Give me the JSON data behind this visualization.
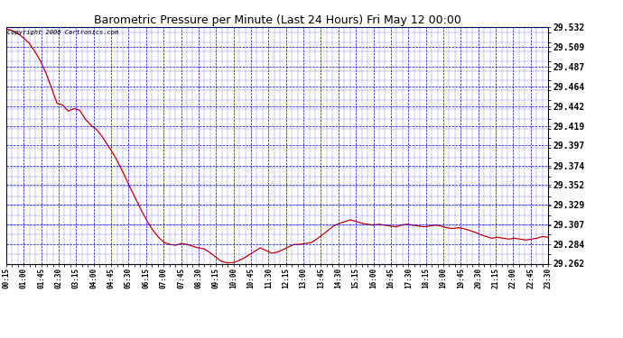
{
  "title": "Barometric Pressure per Minute (Last 24 Hours) Fri May 12 00:00",
  "copyright": "Copyright 2006 Cartronics.com",
  "line_color": "#cc0000",
  "bg_color": "#ffffff",
  "plot_bg_color": "#ffffff",
  "grid_color": "#0000cc",
  "y_min": 29.262,
  "y_max": 29.532,
  "y_ticks": [
    29.262,
    29.284,
    29.307,
    29.329,
    29.352,
    29.374,
    29.397,
    29.419,
    29.442,
    29.464,
    29.487,
    29.509,
    29.532
  ],
  "x_labels": [
    "00:15",
    "01:00",
    "01:45",
    "02:30",
    "03:15",
    "04:00",
    "04:45",
    "05:30",
    "06:15",
    "07:00",
    "07:45",
    "08:30",
    "09:15",
    "10:00",
    "10:45",
    "11:30",
    "12:15",
    "13:00",
    "13:45",
    "14:30",
    "15:15",
    "16:00",
    "16:45",
    "17:30",
    "18:15",
    "19:00",
    "19:45",
    "20:30",
    "21:15",
    "22:00",
    "22:45",
    "23:30"
  ],
  "pressure_values": [
    29.53,
    29.528,
    29.525,
    29.52,
    29.514,
    29.505,
    29.494,
    29.48,
    29.463,
    29.445,
    29.443,
    29.436,
    29.439,
    29.437,
    29.427,
    29.42,
    29.415,
    29.407,
    29.397,
    29.387,
    29.375,
    29.362,
    29.348,
    29.335,
    29.322,
    29.31,
    29.3,
    29.292,
    29.286,
    29.284,
    29.283,
    29.285,
    29.284,
    29.282,
    29.28,
    29.279,
    29.275,
    29.27,
    29.265,
    29.263,
    29.263,
    29.265,
    29.268,
    29.272,
    29.276,
    29.28,
    29.277,
    29.274,
    29.275,
    29.278,
    29.281,
    29.284,
    29.284,
    29.285,
    29.286,
    29.29,
    29.295,
    29.3,
    29.305,
    29.308,
    29.31,
    29.312,
    29.31,
    29.308,
    29.307,
    29.306,
    29.307,
    29.306,
    29.305,
    29.304,
    29.306,
    29.307,
    29.306,
    29.305,
    29.304,
    29.305,
    29.306,
    29.305,
    29.303,
    29.302,
    29.303,
    29.302,
    29.3,
    29.298,
    29.295,
    29.293,
    29.291,
    29.292,
    29.291,
    29.29,
    29.291,
    29.29,
    29.289,
    29.29,
    29.291,
    29.293,
    29.292
  ]
}
